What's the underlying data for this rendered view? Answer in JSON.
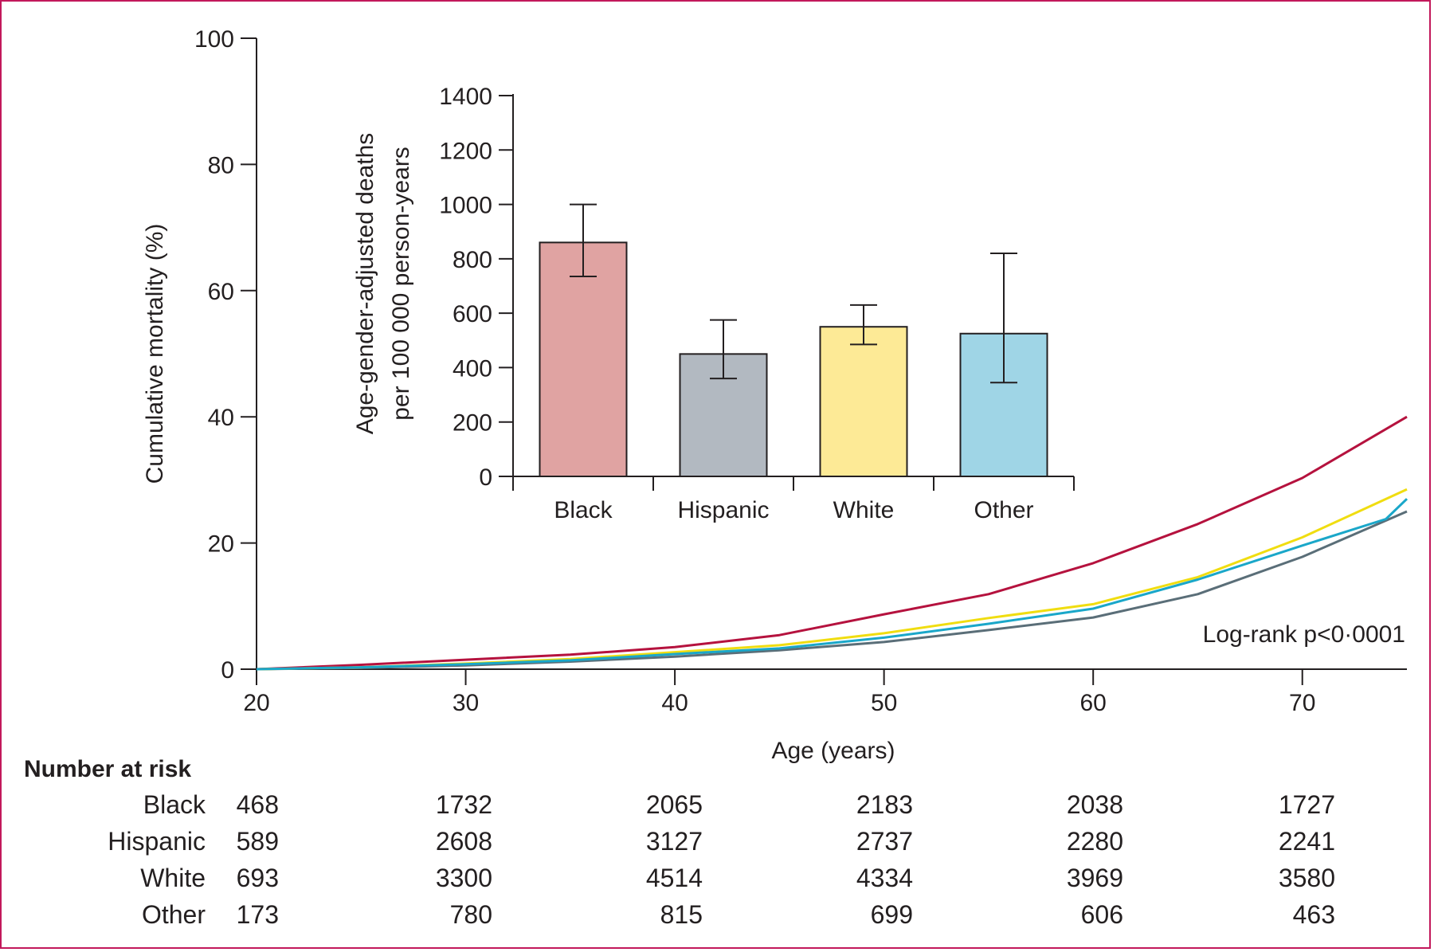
{
  "chart_data": [
    {
      "type": "line",
      "xlabel": "Age (years)",
      "ylabel": "Cumulative mortality (%)",
      "xlim": [
        20,
        75
      ],
      "ylim": [
        0,
        100
      ],
      "xticks": [
        20,
        30,
        40,
        50,
        60,
        70
      ],
      "yticks": [
        0,
        20,
        40,
        60,
        80,
        100
      ],
      "annotation": "Log-rank p<0·0001",
      "series": [
        {
          "name": "Black",
          "color": "#b5123e",
          "x": [
            20,
            25,
            30,
            35,
            40,
            45,
            50,
            55,
            60,
            65,
            70,
            75
          ],
          "y": [
            0,
            0.7,
            1.5,
            2.3,
            3.5,
            5.4,
            8.7,
            11.9,
            16.8,
            23.0,
            30.3,
            40.0
          ]
        },
        {
          "name": "Hispanic",
          "color": "#5a6e78",
          "x": [
            20,
            25,
            30,
            35,
            40,
            45,
            50,
            55,
            60,
            65,
            70,
            75
          ],
          "y": [
            0,
            0.2,
            0.6,
            1.2,
            2.0,
            3.0,
            4.3,
            6.2,
            8.2,
            11.9,
            17.8,
            25.0
          ]
        },
        {
          "name": "White",
          "color": "#f0dd10",
          "x": [
            20,
            25,
            30,
            35,
            40,
            45,
            50,
            55,
            60,
            65,
            70,
            75
          ],
          "y": [
            0,
            0.3,
            0.9,
            1.6,
            2.7,
            3.8,
            5.7,
            8.1,
            10.3,
            14.6,
            20.9,
            28.5
          ]
        },
        {
          "name": "Other",
          "color": "#1aa7c9",
          "x": [
            20,
            25,
            30,
            35,
            40,
            45,
            50,
            55,
            60,
            65,
            70,
            74,
            75
          ],
          "y": [
            0,
            0.3,
            0.8,
            1.4,
            2.4,
            3.3,
            5.0,
            7.2,
            9.6,
            14.2,
            19.6,
            23.8,
            27.0
          ]
        }
      ]
    },
    {
      "type": "bar",
      "ylabel_line1": "Age-gender-adjusted deaths",
      "ylabel_line2": "per 100 000 person-years",
      "ylim": [
        0,
        1400
      ],
      "yticks": [
        0,
        200,
        400,
        600,
        800,
        1000,
        1200,
        1400
      ],
      "categories": [
        "Black",
        "Hispanic",
        "White",
        "Other"
      ],
      "values": [
        860,
        450,
        550,
        525
      ],
      "ci_low": [
        735,
        360,
        485,
        345
      ],
      "ci_high": [
        1000,
        575,
        630,
        820
      ],
      "colors": [
        "#e0a3a2",
        "#b2b9c1",
        "#fdea96",
        "#9fd5e6"
      ]
    }
  ],
  "risk_table": {
    "title": "Number at risk",
    "rows": [
      {
        "label": "Black",
        "values": [
          "468",
          "1732",
          "2065",
          "2183",
          "2038",
          "1727"
        ]
      },
      {
        "label": "Hispanic",
        "values": [
          "589",
          "2608",
          "3127",
          "2737",
          "2280",
          "2241"
        ]
      },
      {
        "label": "White",
        "values": [
          "693",
          "3300",
          "4514",
          "4334",
          "3969",
          "3580"
        ]
      },
      {
        "label": "Other",
        "values": [
          "173",
          "780",
          "815",
          "699",
          "606",
          "463"
        ]
      }
    ]
  }
}
